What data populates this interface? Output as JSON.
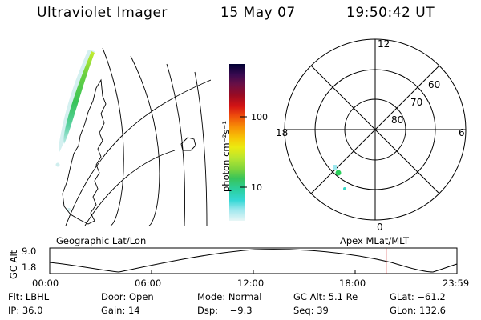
{
  "header": {
    "title": "Ultraviolet Imager",
    "date": "15 May 07",
    "time": "19:50:42 UT"
  },
  "colorbar": {
    "unit_label": "photon cm⁻²s⁻¹",
    "ticks": [
      {
        "label": "100",
        "value": 100
      },
      {
        "label": "10",
        "value": 10
      }
    ],
    "colors": [
      "#000033",
      "#3a0a50",
      "#6a0f45",
      "#9a0b22",
      "#d41414",
      "#ee4c0c",
      "#f78d06",
      "#f7c506",
      "#ecea10",
      "#b8e630",
      "#7ed43c",
      "#38c45a",
      "#2bcf9e",
      "#35d8d6",
      "#9ee8ee",
      "#e8f6f6"
    ]
  },
  "geo_panel": {
    "label": "Geographic Lat/Lon"
  },
  "polar_plot": {
    "label": "Apex MLat/MLT",
    "mlt_labels": {
      "top": "12",
      "left": "18",
      "right": "6",
      "bottom": "0"
    },
    "lat_labels": [
      "60",
      "70",
      "80"
    ]
  },
  "timeline": {
    "ylabel": "GC Alt",
    "yticks": [
      "9.0",
      "1.8"
    ],
    "xticks": [
      "00:00",
      "06:00",
      "12:00",
      "18:00",
      "23:59"
    ],
    "current_time_fraction": 0.826,
    "marker_color": "#c80000"
  },
  "info_row1": {
    "flt": "Flt: LBHL",
    "door": "Door: Open",
    "mode": "Mode: Normal",
    "gcalt": "GC Alt: 5.1 Re",
    "glat": "GLat: −61.2"
  },
  "info_row2": {
    "ip": "IP: 36.0",
    "gain": "Gain: 14",
    "dsp": "Dsp:    −9.3",
    "seq": "Seq: 39",
    "glon": "GLon: 132.6"
  }
}
